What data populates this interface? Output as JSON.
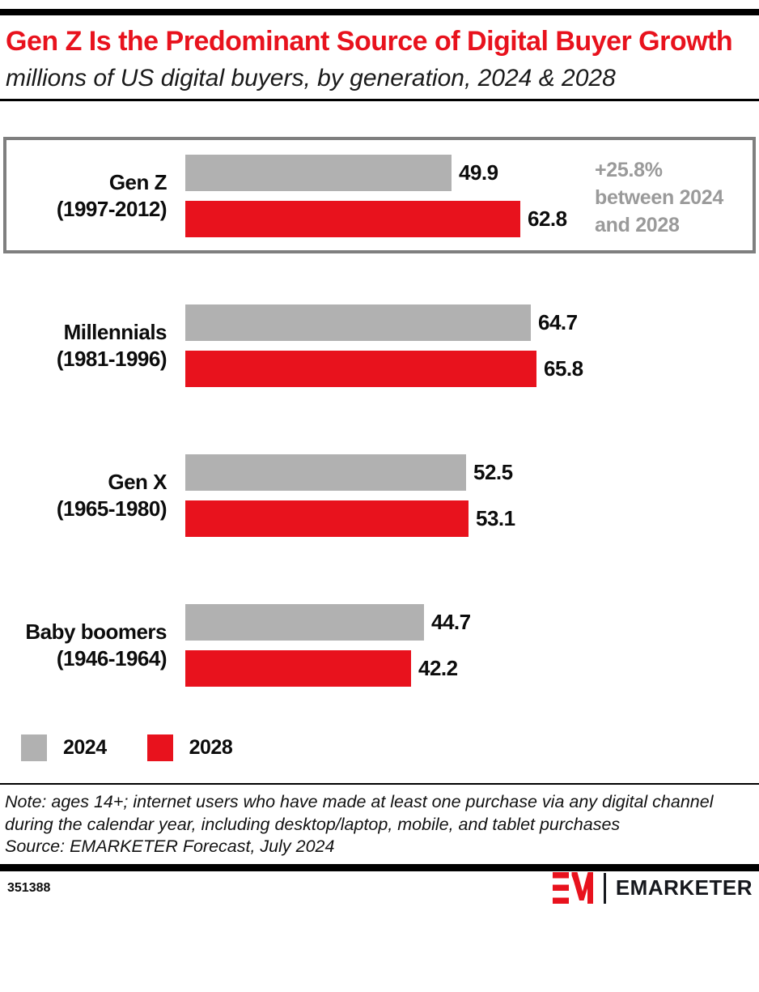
{
  "header": {
    "title": "Gen Z Is the Predominant Source of Digital Buyer Growth",
    "subtitle": "millions of US digital buyers, by generation, 2024 & 2028"
  },
  "chart_data": {
    "type": "bar",
    "orientation": "horizontal",
    "title": "Gen Z Is the Predominant Source of Digital Buyer Growth",
    "subtitle": "millions of US digital buyers, by generation, 2024 & 2028",
    "unit": "millions of US digital buyers",
    "categories": [
      {
        "label": "Gen Z",
        "years": "(1997-2012)",
        "highlighted": true
      },
      {
        "label": "Millennials",
        "years": "(1981-1996)",
        "highlighted": false
      },
      {
        "label": "Gen X",
        "years": "(1965-1980)",
        "highlighted": false
      },
      {
        "label": "Baby boomers",
        "years": "(1946-1964)",
        "highlighted": false
      }
    ],
    "series": [
      {
        "name": "2024",
        "color": "#b1b1b1",
        "values": [
          49.9,
          64.7,
          52.5,
          44.7
        ]
      },
      {
        "name": "2028",
        "color": "#e8121d",
        "values": [
          62.8,
          65.8,
          53.1,
          42.2
        ]
      }
    ],
    "xlim": [
      0,
      70
    ],
    "grid": false,
    "legend_position": "bottom",
    "annotation": {
      "lines": [
        "+25.8%",
        "between 2024",
        "and 2028"
      ],
      "applies_to": "Gen Z",
      "color": "#9a9a9a"
    }
  },
  "legend": {
    "items": [
      {
        "label": "2024",
        "color": "#b1b1b1"
      },
      {
        "label": "2028",
        "color": "#e8121d"
      }
    ]
  },
  "notes": {
    "note": "Note: ages 14+; internet users who have made at least one purchase via any digital channel during the calendar year, including desktop/laptop, mobile, and tablet purchases",
    "source": "Source: EMARKETER Forecast, July 2024"
  },
  "footer": {
    "chart_id": "351388",
    "brand": "EMARKETER"
  },
  "colors": {
    "accent_red": "#e8121d",
    "bar_gray": "#b1b1b1",
    "annotation_gray": "#9a9a9a",
    "box_border": "#7f7f7f",
    "text": "#0c0c0c"
  }
}
